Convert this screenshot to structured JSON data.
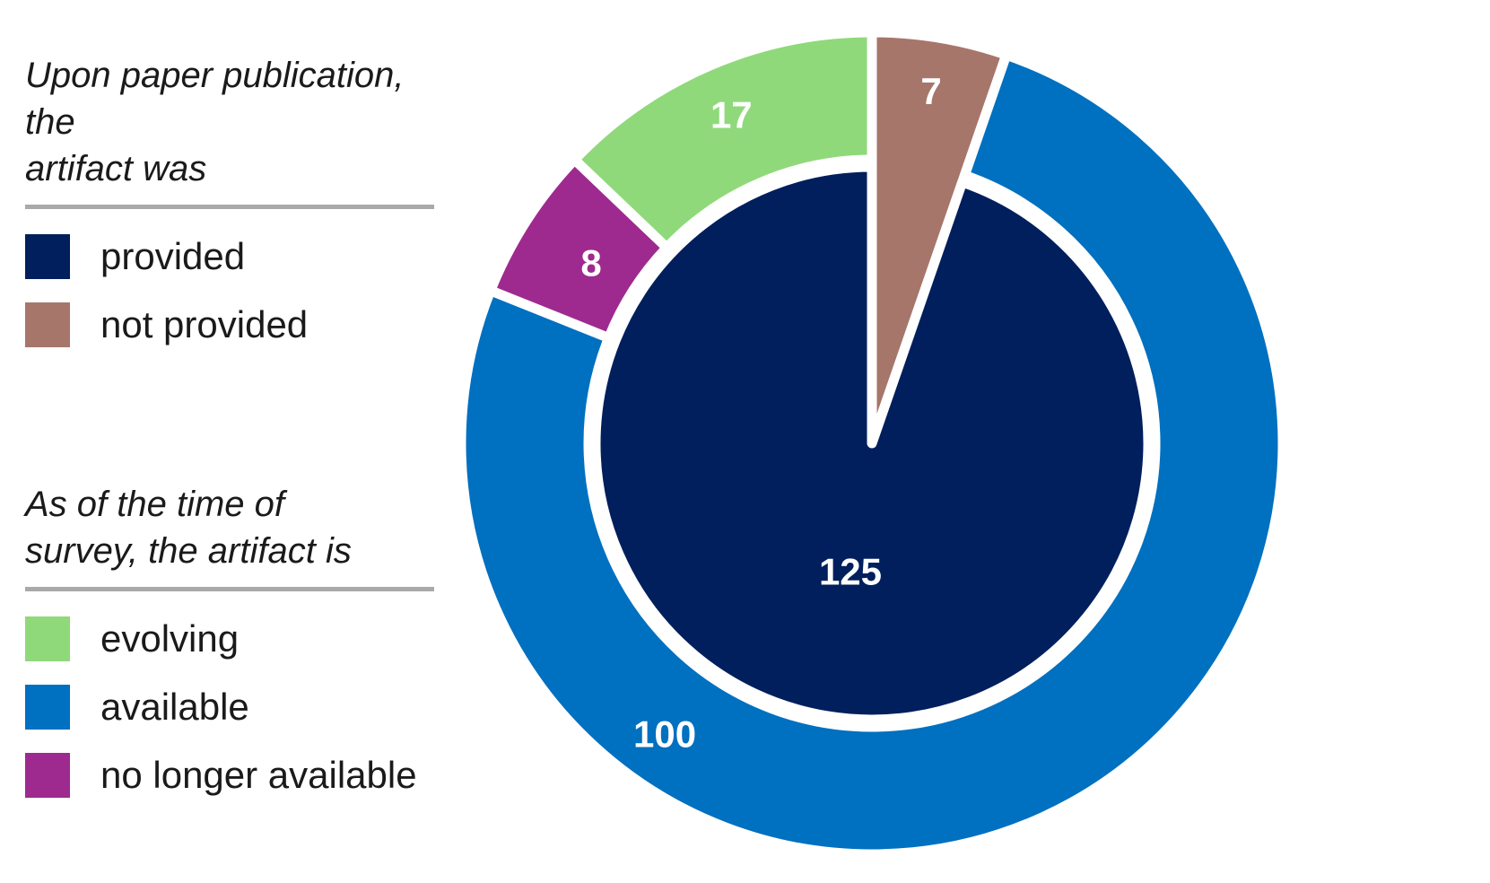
{
  "legend": {
    "top": {
      "title_line1": "Upon paper publication, the",
      "title_line2": "artifact was",
      "items": [
        {
          "label": "provided",
          "color": "#001f5c"
        },
        {
          "label": "not provided",
          "color": "#a6766b"
        }
      ]
    },
    "bottom": {
      "title_line1": "As of the time of",
      "title_line2": "survey, the artifact is",
      "items": [
        {
          "label": "evolving",
          "color": "#8fd97a"
        },
        {
          "label": "available",
          "color": "#0070c0"
        },
        {
          "label": "no longer available",
          "color": "#9e2a8f"
        }
      ]
    }
  },
  "chart_data": {
    "type": "pie",
    "title": "",
    "series": [
      {
        "name": "Upon paper publication, the artifact was",
        "ring": "outer-segment-and-inner",
        "slices": [
          {
            "label": "not provided",
            "value": 7,
            "color": "#a6766b"
          },
          {
            "label": "provided",
            "value": 125,
            "color": "#001f5c"
          }
        ]
      },
      {
        "name": "As of the time of survey, the artifact is",
        "ring": "outer",
        "slices": [
          {
            "label": "available",
            "value": 100,
            "color": "#0070c0"
          },
          {
            "label": "no longer available",
            "value": 8,
            "color": "#9e2a8f"
          },
          {
            "label": "evolving",
            "value": 17,
            "color": "#8fd97a"
          }
        ]
      }
    ]
  }
}
